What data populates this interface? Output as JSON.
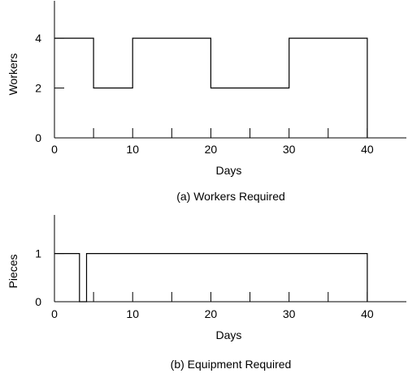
{
  "chart_data": [
    {
      "type": "line",
      "step": true,
      "caption": "(a) Workers Required",
      "xlabel": "Days",
      "ylabel": "Workers",
      "xlim": [
        0,
        45
      ],
      "ylim": [
        0,
        5.5
      ],
      "xticks": [
        0,
        5,
        10,
        15,
        20,
        25,
        30,
        35,
        40
      ],
      "xtick_labels": [
        "0",
        "",
        "10",
        "",
        "20",
        "",
        "30",
        "",
        "40"
      ],
      "yticks": [
        0,
        2,
        4
      ],
      "ytick_labels": [
        "0",
        "2",
        "4"
      ],
      "grid": false,
      "series": [
        {
          "x": [
            0,
            5,
            5,
            10,
            10,
            20,
            20,
            30,
            30,
            40,
            40
          ],
          "values": [
            4,
            4,
            2,
            2,
            4,
            4,
            2,
            2,
            4,
            4,
            0
          ]
        }
      ]
    },
    {
      "type": "line",
      "step": true,
      "caption": "(b) Equipment Required",
      "xlabel": "Days",
      "ylabel": "Pieces",
      "xlim": [
        0,
        45
      ],
      "ylim": [
        0,
        1.8
      ],
      "xticks": [
        0,
        5,
        10,
        15,
        20,
        25,
        30,
        35,
        40
      ],
      "xtick_labels": [
        "0",
        "",
        "10",
        "",
        "20",
        "",
        "30",
        "",
        "40"
      ],
      "yticks": [
        0,
        1
      ],
      "ytick_labels": [
        "0",
        "1"
      ],
      "grid": false,
      "series": [
        {
          "x": [
            0,
            3.2,
            3.2,
            4.1,
            4.1,
            40,
            40
          ],
          "values": [
            1,
            1,
            0,
            0,
            1,
            1,
            0
          ]
        }
      ]
    }
  ]
}
